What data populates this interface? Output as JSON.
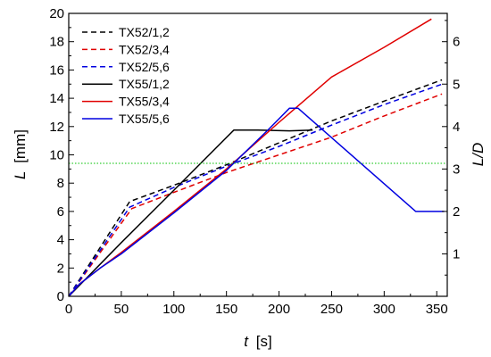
{
  "chart_data": {
    "type": "line",
    "xlabel": {
      "var": "t",
      "unit": "[s]"
    },
    "ylabel": {
      "var": "L",
      "unit": "[mm]"
    },
    "y2label": "L/D",
    "xlim": [
      0,
      360
    ],
    "ylim": [
      0,
      20
    ],
    "y2lim": [
      0,
      6.6667
    ],
    "x_ticks": [
      "0",
      "50",
      "100",
      "150",
      "200",
      "250",
      "300",
      "350"
    ],
    "y_ticks": [
      "0",
      "2",
      "4",
      "6",
      "8",
      "10",
      "12",
      "14",
      "16",
      "18",
      "20"
    ],
    "y2_ticks": [
      "1",
      "2",
      "3",
      "4",
      "5",
      "6"
    ],
    "grid": false,
    "legend": "top-left",
    "reference_line": {
      "y": 9.4,
      "color": "#00c000",
      "style": "dotted"
    },
    "series": [
      {
        "name": "TX52/1,2",
        "color": "#000000",
        "dash": "dashed",
        "x": [
          0,
          58,
          100,
          150,
          200,
          250,
          300,
          355
        ],
        "y": [
          0,
          6.7,
          7.85,
          9.3,
          10.85,
          12.4,
          13.8,
          15.3
        ]
      },
      {
        "name": "TX52/3,4",
        "color": "#e00000",
        "dash": "dashed",
        "x": [
          0,
          60,
          100,
          150,
          200,
          250,
          300,
          355
        ],
        "y": [
          0,
          6.2,
          7.35,
          8.75,
          10.0,
          11.25,
          12.75,
          14.3
        ]
      },
      {
        "name": "TX52/5,6",
        "color": "#0000e0",
        "dash": "dashed",
        "x": [
          0,
          58,
          100,
          150,
          200,
          250,
          300,
          355
        ],
        "y": [
          0,
          6.3,
          7.7,
          9.2,
          10.6,
          12.1,
          13.55,
          15.0
        ]
      },
      {
        "name": "TX55/1,2",
        "color": "#000000",
        "dash": "solid",
        "x": [
          0,
          50,
          100,
          157,
          180,
          210,
          232
        ],
        "y": [
          0,
          3.8,
          7.5,
          11.75,
          11.75,
          11.7,
          11.75
        ]
      },
      {
        "name": "TX55/3,4",
        "color": "#e00000",
        "dash": "solid",
        "x": [
          0,
          10,
          30,
          50,
          100,
          150,
          200,
          250,
          300,
          345
        ],
        "y": [
          0,
          0.85,
          2.0,
          3.1,
          6.0,
          9.0,
          12.3,
          15.5,
          17.6,
          19.6
        ]
      },
      {
        "name": "TX55/5,6",
        "color": "#0000e0",
        "dash": "solid",
        "x": [
          0,
          10,
          30,
          50,
          100,
          150,
          190,
          210,
          218,
          330,
          357
        ],
        "y": [
          0,
          0.85,
          2.0,
          3.0,
          5.9,
          8.9,
          11.8,
          13.3,
          13.3,
          6.0,
          6.0
        ]
      }
    ]
  }
}
